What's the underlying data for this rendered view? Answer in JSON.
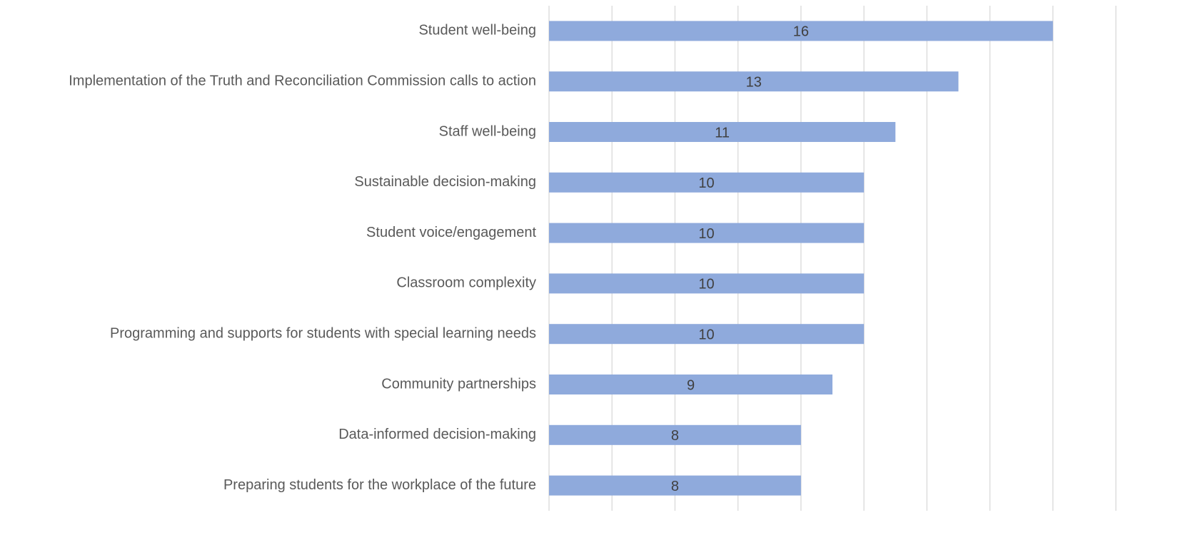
{
  "chart_data": {
    "type": "bar",
    "orientation": "horizontal",
    "categories": [
      "Student well-being",
      "Implementation of the Truth and Reconciliation Commission calls to action",
      "Staff well-being",
      "Sustainable decision-making",
      "Student voice/engagement",
      "Classroom complexity",
      "Programming and supports for students with special learning needs",
      "Community partnerships",
      "Data-informed decision-making",
      "Preparing students for the workplace of the future"
    ],
    "values": [
      16,
      13,
      11,
      10,
      10,
      10,
      10,
      9,
      8,
      8
    ],
    "color": "#8faadc",
    "xlim": [
      0,
      18
    ],
    "xticks": [
      0,
      2,
      4,
      6,
      8,
      10,
      12,
      14,
      16,
      18
    ],
    "grid": true
  }
}
